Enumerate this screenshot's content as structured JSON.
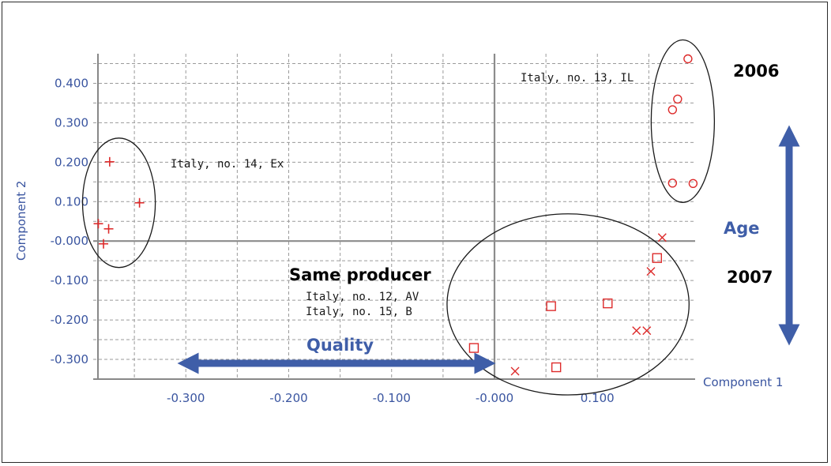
{
  "chart_data": {
    "type": "scatter",
    "xlabel": "Component 1",
    "ylabel": "Component 2",
    "xlim": [
      -0.39,
      0.195
    ],
    "ylim": [
      -0.35,
      0.475
    ],
    "x_ticks": [
      -0.3,
      -0.2,
      -0.1,
      0.0,
      0.1
    ],
    "x_tick_labels": [
      "-0.300",
      "-0.200",
      "-0.100",
      "-0.000",
      "0.100"
    ],
    "y_ticks": [
      0.4,
      0.3,
      0.2,
      0.1,
      0.0,
      -0.1,
      -0.2,
      -0.3
    ],
    "y_tick_labels": [
      "0.400",
      "0.300",
      "0.200",
      "0.100",
      "-0.000",
      "-0.100",
      "-0.200",
      "-0.300"
    ],
    "grid": true,
    "marker_color": "#dd2b2b",
    "series": [
      {
        "marker": "plus",
        "points": [
          [
            -0.374,
            0.201
          ],
          [
            -0.345,
            0.097
          ],
          [
            -0.385,
            0.044
          ],
          [
            -0.375,
            0.031
          ],
          [
            -0.38,
            -0.007
          ]
        ]
      },
      {
        "marker": "circle",
        "points": [
          [
            0.188,
            0.462
          ],
          [
            0.178,
            0.36
          ],
          [
            0.173,
            0.333
          ],
          [
            0.173,
            0.147
          ],
          [
            0.193,
            0.146
          ]
        ]
      },
      {
        "marker": "square",
        "points": [
          [
            -0.02,
            -0.271
          ],
          [
            0.055,
            -0.165
          ],
          [
            0.06,
            -0.32
          ],
          [
            0.11,
            -0.158
          ],
          [
            0.158,
            -0.043
          ]
        ]
      },
      {
        "marker": "x",
        "points": [
          [
            0.02,
            -0.33
          ],
          [
            0.138,
            -0.227
          ],
          [
            0.148,
            -0.227
          ],
          [
            0.152,
            -0.077
          ],
          [
            0.163,
            0.009
          ]
        ]
      }
    ],
    "annotations": {
      "group_ex": "Italy, no. 14, Ex",
      "group_il": "Italy, no. 13, IL",
      "same_producer": "Same producer",
      "group_av": "Italy,  no. 12, AV",
      "group_b": "Italy, no. 15, B",
      "year_top": "2006",
      "year_bottom": "2007",
      "age": "Age",
      "quality": "Quality"
    },
    "arrow_color": "#3f5ea8"
  }
}
